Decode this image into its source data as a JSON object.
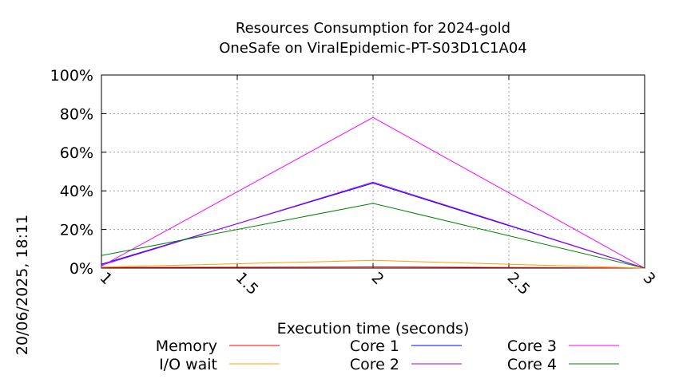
{
  "chart_data": {
    "type": "line",
    "title": "Resources Consumption for 2024-gold",
    "subtitle": "OneSafe on ViralEpidemic-PT-S03D1C1A04",
    "xlabel": "Execution time (seconds)",
    "ylabel": "",
    "xlim": [
      1,
      3
    ],
    "ylim": [
      0,
      100
    ],
    "x_ticks": [
      1,
      1.5,
      2,
      2.5,
      3
    ],
    "x_tick_labels": [
      "1",
      "1.5",
      "2",
      "2.5",
      "3"
    ],
    "y_ticks": [
      0,
      20,
      40,
      60,
      80,
      100
    ],
    "y_tick_labels": [
      "0%",
      "20%",
      "40%",
      "60%",
      "80%",
      "100%"
    ],
    "grid": true,
    "legend_position": "bottom",
    "x": [
      1,
      2,
      3
    ],
    "series": [
      {
        "name": "Memory",
        "color": "#ff0000",
        "values": [
          0.3,
          0.6,
          0
        ]
      },
      {
        "name": "I/O wait",
        "color": "#ffa000",
        "values": [
          0.5,
          4,
          0
        ]
      },
      {
        "name": "Core 1",
        "color": "#0000ff",
        "values": [
          2,
          44,
          0
        ]
      },
      {
        "name": "Core 2",
        "color": "#a000ff",
        "values": [
          1.5,
          44.5,
          0
        ]
      },
      {
        "name": "Core 3",
        "color": "#ff00ff",
        "values": [
          1,
          78,
          0
        ]
      },
      {
        "name": "Core 4",
        "color": "#008000",
        "values": [
          6.5,
          33.5,
          0
        ]
      }
    ]
  },
  "timestamp": "20/06/2025, 18:11"
}
